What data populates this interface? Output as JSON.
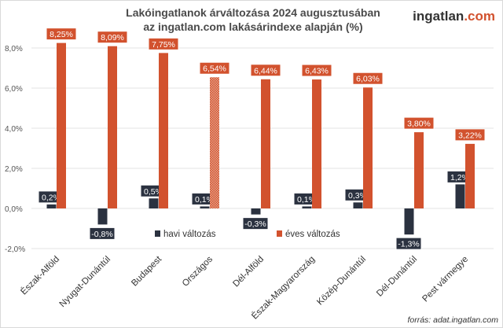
{
  "chart_data": {
    "type": "bar",
    "title": "Lakóingatlanok árváltozása 2024 augusztusában",
    "subtitle": "az ingatlan.com lakásárindexe alapján (%)",
    "categories": [
      "Észak-Alföld",
      "Nyugat-Dunántúl",
      "Budapest",
      "Országos",
      "Dél-Alföld",
      "Észak-Magyarország",
      "Közép-Dunántúl",
      "Dél-Dunántúl",
      "Pest vármegye"
    ],
    "series": [
      {
        "name": "havi változás",
        "color": "#2b3240",
        "values": [
          0.2,
          -0.8,
          0.5,
          0.1,
          -0.3,
          0.1,
          0.3,
          -1.3,
          1.2
        ],
        "labels": [
          "0,2%",
          "-0,8%",
          "0,5%",
          "0,1%",
          "-0,3%",
          "0,1%",
          "0,3%",
          "-1,3%",
          "1,2%"
        ]
      },
      {
        "name": "éves változás",
        "color": "#d2522e",
        "values": [
          8.25,
          8.09,
          7.75,
          6.54,
          6.44,
          6.43,
          6.03,
          3.8,
          3.22
        ],
        "labels": [
          "8,25%",
          "8,09%",
          "7,75%",
          "6,54%",
          "6,44%",
          "6,43%",
          "6,03%",
          "3,80%",
          "3,22%"
        ]
      }
    ],
    "highlighted_category": "Országos",
    "ylim": [
      -2,
      8.8
    ],
    "yticks": [
      -2,
      0,
      2,
      4,
      6,
      8
    ],
    "ytick_labels": [
      "-2,0%",
      "0,0%",
      "2,0%",
      "4,0%",
      "6,0%",
      "8,0%"
    ],
    "grid": true,
    "legend_position": "bottom-center",
    "xlabel": "",
    "ylabel": ""
  },
  "logo": {
    "text_main": "ingatlan",
    "text_suffix": ".com",
    "suffix_color": "#d2522e"
  },
  "source": "forrás: adat.ingatlan.com"
}
